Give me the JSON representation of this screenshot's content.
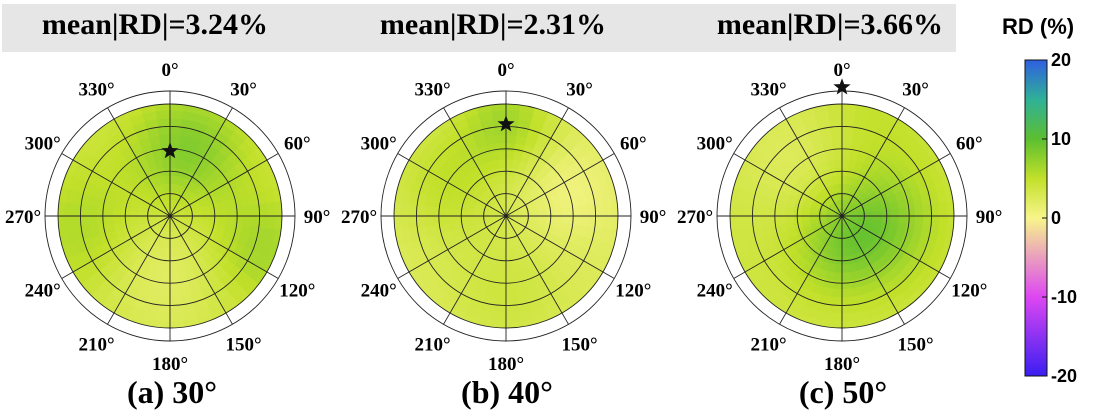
{
  "chart_data": [
    {
      "type": "polar-heatmap",
      "title": "mean|RD|=3.24%",
      "caption": "(a) 30°",
      "angle_ticks": [
        "0°",
        "30°",
        "60°",
        "90°",
        "120°",
        "150°",
        "180°",
        "210°",
        "240°",
        "270°",
        "300°",
        "330°"
      ],
      "star": {
        "azimuth_deg": 0,
        "radius_fraction": 0.58
      },
      "field": {
        "base": 3.6,
        "blobs": [
          {
            "az": 15,
            "r": 0.62,
            "amp": 4.5,
            "s": 0.35
          },
          {
            "az": 260,
            "r": 0.75,
            "amp": 2.5,
            "s": 0.4
          },
          {
            "az": 110,
            "r": 0.85,
            "amp": 3.0,
            "s": 0.35
          },
          {
            "az": 190,
            "r": 0.45,
            "amp": -2.0,
            "s": 0.4
          }
        ]
      }
    },
    {
      "type": "polar-heatmap",
      "title": "mean|RD|=2.31%",
      "caption": "(b) 40°",
      "angle_ticks": [
        "0°",
        "30°",
        "60°",
        "90°",
        "120°",
        "150°",
        "180°",
        "210°",
        "240°",
        "270°",
        "300°",
        "330°"
      ],
      "star": {
        "azimuth_deg": 0,
        "radius_fraction": 0.82
      },
      "field": {
        "base": 2.4,
        "blobs": [
          {
            "az": 0,
            "r": 0.85,
            "amp": 4.0,
            "s": 0.3
          },
          {
            "az": 300,
            "r": 0.6,
            "amp": 2.5,
            "s": 0.35
          },
          {
            "az": 70,
            "r": 0.6,
            "amp": -1.8,
            "s": 0.3
          },
          {
            "az": 180,
            "r": 0.7,
            "amp": 1.5,
            "s": 0.4
          }
        ]
      }
    },
    {
      "type": "polar-heatmap",
      "title": "mean|RD|=3.66%",
      "caption": "(c) 50°",
      "angle_ticks": [
        "0°",
        "30°",
        "60°",
        "90°",
        "120°",
        "150°",
        "180°",
        "210°",
        "240°",
        "270°",
        "300°",
        "330°"
      ],
      "star": {
        "azimuth_deg": 0,
        "radius_fraction": 1.15
      },
      "field": {
        "base": 3.8,
        "blobs": [
          {
            "az": 100,
            "r": 0.35,
            "amp": 4.0,
            "s": 0.35
          },
          {
            "az": 180,
            "r": 0.3,
            "amp": 3.0,
            "s": 0.3
          },
          {
            "az": 320,
            "r": 0.7,
            "amp": -1.5,
            "s": 0.35
          },
          {
            "az": 20,
            "r": 0.9,
            "amp": 1.0,
            "s": 0.35
          }
        ]
      }
    }
  ],
  "colorbar": {
    "title": "RD (%)",
    "min": -20,
    "max": 20,
    "ticks": [
      {
        "value": 20,
        "label": "20"
      },
      {
        "value": 10,
        "label": "10"
      },
      {
        "value": 0,
        "label": "0"
      },
      {
        "value": -10,
        "label": "-10"
      },
      {
        "value": -20,
        "label": "-20"
      }
    ],
    "colors": [
      {
        "value": -20,
        "color": "#3a1ef2"
      },
      {
        "value": -10,
        "color": "#dd47f2"
      },
      {
        "value": 0,
        "color": "#f7f58a"
      },
      {
        "value": 5,
        "color": "#c2e02a"
      },
      {
        "value": 10,
        "color": "#5cbf30"
      },
      {
        "value": 15,
        "color": "#2fb197"
      },
      {
        "value": 20,
        "color": "#2f5fe0"
      }
    ]
  }
}
